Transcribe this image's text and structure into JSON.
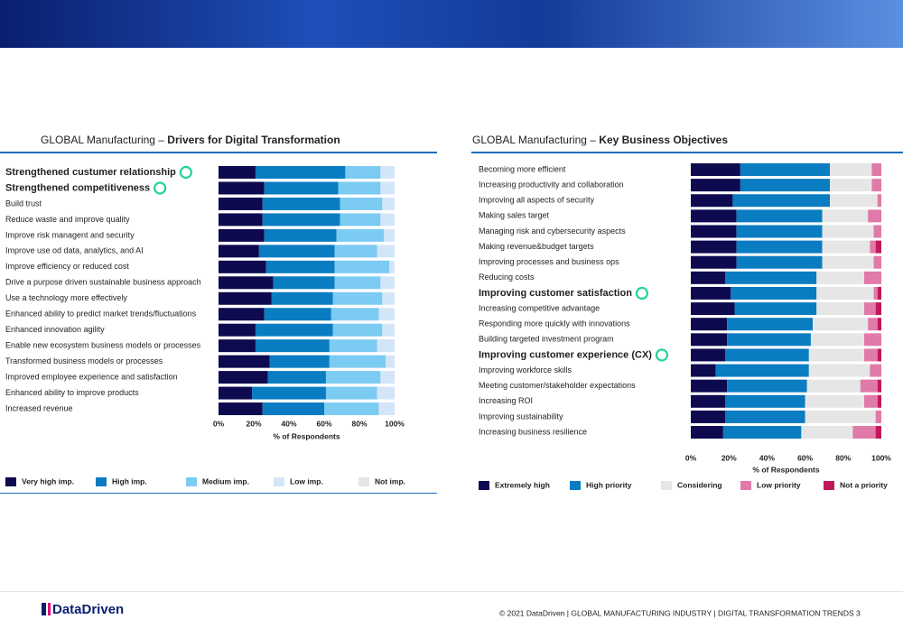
{
  "chart_data": [
    {
      "type": "stacked-barh",
      "title_prefix": "GLOBAL Manufacturing – ",
      "title": "Drivers for Digital Transformation",
      "categories": [
        "Strengthened custumer relationship",
        "Strengthened competitiveness",
        "Build trust",
        "Reduce waste and improve quality",
        "Improve risk managent and security",
        "Improve use od data, analytics, and AI",
        "Improve efficiency or reduced cost",
        "Drive a purpose driven sustainable business approach",
        "Use a technology more effectively",
        "Enhanced ability to predict market trends/fluctuations",
        "Enhanced innovation agility",
        "Enable new ecosystem business models or processes",
        "Transformed business models or processes",
        "Improved employee experience and satisfaction",
        "Enhanced ability to improve products",
        "Increased revenue"
      ],
      "highlighted": [
        0,
        1
      ],
      "series": [
        {
          "name": "Very high imp.",
          "color": "#0d0a4f",
          "values": [
            21,
            26,
            25,
            25,
            26,
            23,
            27,
            31,
            30,
            26,
            21,
            21,
            29,
            28,
            19,
            25
          ]
        },
        {
          "name": "High imp.",
          "color": "#0a7cc1",
          "values": [
            51,
            42,
            44,
            44,
            41,
            43,
            39,
            35,
            35,
            38,
            44,
            42,
            34,
            33,
            42,
            35
          ]
        },
        {
          "name": "Medium imp.",
          "color": "#7bcbf2",
          "values": [
            20,
            24,
            24,
            23,
            27,
            24,
            31,
            26,
            28,
            27,
            28,
            27,
            32,
            31,
            29,
            31
          ]
        },
        {
          "name": "Low imp.",
          "color": "#d3e6f8",
          "values": [
            8,
            8,
            7,
            8,
            6,
            10,
            3,
            8,
            7,
            9,
            7,
            10,
            5,
            8,
            10,
            9
          ]
        },
        {
          "name": "Not imp.",
          "color": "#e6e6e6",
          "values": [
            0,
            0,
            0,
            0,
            0,
            0,
            0,
            0,
            0,
            0,
            0,
            0,
            0,
            0,
            0,
            0
          ]
        }
      ],
      "xlabel": "% of Respondents",
      "xlim": [
        0,
        100
      ],
      "xticks": [
        {
          "value": 0,
          "label": "0%"
        },
        {
          "value": 20,
          "label": "20%"
        },
        {
          "value": 40,
          "label": "40%"
        },
        {
          "value": 60,
          "label": "60%"
        },
        {
          "value": 80,
          "label": "80%"
        },
        {
          "value": 100,
          "label": "100%"
        }
      ]
    },
    {
      "type": "stacked-barh",
      "title_prefix": "GLOBAL Manufacturing – ",
      "title": "Key Business Objectives",
      "categories": [
        "Becoming more efficient",
        "Increasing productivity and collaboration",
        "Improving all aspects of security",
        "Making sales target",
        "Managing risk and cybersecurity aspects",
        "Making revenue&budget targets",
        "Improving processes and business ops",
        "Reducing costs",
        "Improving customer satisfaction",
        "Increasing competitive advantage",
        "Responding more quickly with innovations",
        "Building targeted investment program",
        "Improving customer experience (CX)",
        "Improving workforce skills",
        "Meeting customer/stakeholder expectations",
        "Increasing ROI",
        "Improving sustainability",
        "Increasing business resilience"
      ],
      "highlighted": [
        8,
        12
      ],
      "series": [
        {
          "name": "Extremely high",
          "color": "#0d0a4f",
          "values": [
            26,
            26,
            22,
            24,
            24,
            24,
            24,
            18,
            21,
            23,
            19,
            19,
            18,
            13,
            19,
            18,
            18,
            17
          ]
        },
        {
          "name": "High priority",
          "color": "#0a7cc1",
          "values": [
            47,
            47,
            51,
            45,
            45,
            45,
            45,
            48,
            45,
            43,
            45,
            44,
            44,
            49,
            42,
            42,
            42,
            41
          ]
        },
        {
          "name": "Considering",
          "color": "#e6e6e6",
          "values": [
            22,
            22,
            25,
            24,
            27,
            25,
            27,
            25,
            30,
            25,
            29,
            28,
            29,
            32,
            28,
            31,
            37,
            27
          ]
        },
        {
          "name": "Low priority",
          "color": "#e07aa8",
          "values": [
            5,
            5,
            2,
            7,
            4,
            3,
            4,
            9,
            2,
            6,
            5,
            9,
            7,
            6,
            9,
            7,
            3,
            12
          ]
        },
        {
          "name": "Not a priority",
          "color": "#c2185b",
          "values": [
            0,
            0,
            0,
            0,
            0,
            3,
            0,
            0,
            2,
            3,
            2,
            0,
            2,
            0,
            2,
            2,
            0,
            3
          ]
        }
      ],
      "xlabel": "% of Respondents",
      "xlim": [
        0,
        100
      ],
      "xticks": [
        {
          "value": 0,
          "label": "0%"
        },
        {
          "value": 20,
          "label": "20%"
        },
        {
          "value": 40,
          "label": "40%"
        },
        {
          "value": 60,
          "label": "60%"
        },
        {
          "value": 80,
          "label": "80%"
        },
        {
          "value": 100,
          "label": "100%"
        }
      ]
    }
  ],
  "footer": {
    "logo": "DataDriven",
    "copyright": "© 2021 DataDriven | GLOBAL MANUFACTURING INDUSTRY | DIGITAL TRANSFORMATION TRENDS",
    "page": "3"
  }
}
